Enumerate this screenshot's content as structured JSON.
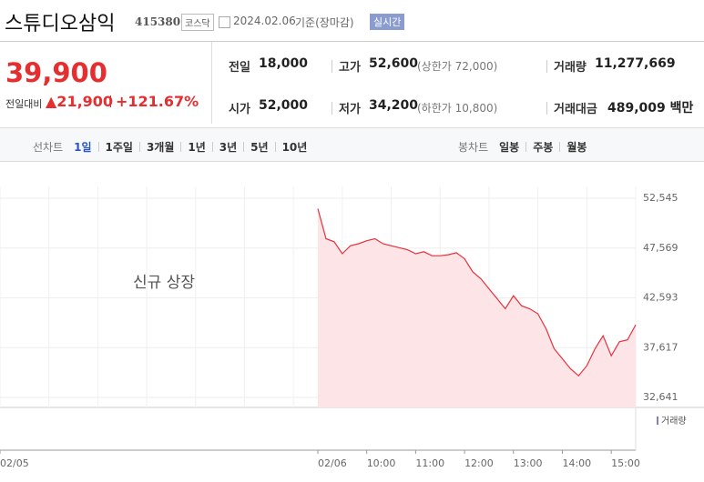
{
  "header": {
    "title": "스튜디오삼익",
    "code": "415380",
    "market": "코스닥",
    "date": "2024.02.06",
    "basis": "기준(장마감)",
    "realtime": "실시간"
  },
  "price": {
    "current": "39,900",
    "change_label": "전일대비",
    "change": "▲21,900",
    "change_rate": "+121.67%"
  },
  "stats": [
    {
      "label": "전일",
      "value": "18,000"
    },
    {
      "label": "고가",
      "value": "52,600",
      "note": "(상한가 72,000)"
    },
    {
      "label": "거래량",
      "value": "11,277,669"
    },
    {
      "label": "시가",
      "value": "52,000"
    },
    {
      "label": "저가",
      "value": "34,200",
      "note": "(하한가 10,800)"
    },
    {
      "label": "거래대금",
      "value": "489,009 백만"
    }
  ],
  "tabs": {
    "line_label": "선차트",
    "line": [
      "1일",
      "1주일",
      "3개월",
      "1년",
      "3년",
      "5년",
      "10년"
    ],
    "candle_label": "봉차트",
    "candle": [
      "일봉",
      "주봉",
      "월봉"
    ]
  },
  "chart_data": {
    "type": "area",
    "annotation": "신규 상장",
    "volume_label": "거래량",
    "color": "#e8303a",
    "fill": "#fde4e7",
    "x": [
      6.5,
      6.667,
      6.833,
      7,
      7.167,
      7.333,
      7.5,
      7.667,
      7.833,
      8,
      8.167,
      8.333,
      8.5,
      8.667,
      8.833,
      9,
      9.167,
      9.333,
      9.5,
      9.667,
      9.833,
      10,
      10.167,
      10.333,
      10.5,
      10.667,
      10.833,
      11,
      11.167,
      11.333,
      11.5,
      11.667,
      11.833,
      12,
      12.167,
      12.333,
      12.5,
      12.667,
      12.833,
      13
    ],
    "values": [
      51500,
      48500,
      48200,
      47000,
      47800,
      48000,
      48300,
      48500,
      48000,
      47800,
      47600,
      47400,
      47000,
      47200,
      46800,
      46800,
      46900,
      47100,
      46500,
      45200,
      44500,
      43500,
      42500,
      41500,
      42800,
      41800,
      41500,
      41000,
      39500,
      37500,
      36500,
      35500,
      34800,
      35800,
      37500,
      38800,
      36800,
      38200,
      38400,
      39900
    ],
    "xlim": [
      0,
      13
    ],
    "xticks": [
      {
        "value": 0,
        "label": "02/05"
      },
      {
        "value": 6.5,
        "label": "02/06"
      },
      {
        "value": 7.5,
        "label": "10:00"
      },
      {
        "value": 8.5,
        "label": "11:00"
      },
      {
        "value": 9.5,
        "label": "12:00"
      },
      {
        "value": 10.5,
        "label": "13:00"
      },
      {
        "value": 11.5,
        "label": "14:00"
      },
      {
        "value": 12.5,
        "label": "15:00"
      }
    ],
    "ylim": [
      32641,
      52545
    ],
    "yticks": [
      {
        "value": 52545,
        "label": "52,545"
      },
      {
        "value": 47569,
        "label": "47,569"
      },
      {
        "value": 42593,
        "label": "42,593"
      },
      {
        "value": 37617,
        "label": "37,617"
      },
      {
        "value": 32641,
        "label": "32,641"
      }
    ],
    "grid": true
  }
}
